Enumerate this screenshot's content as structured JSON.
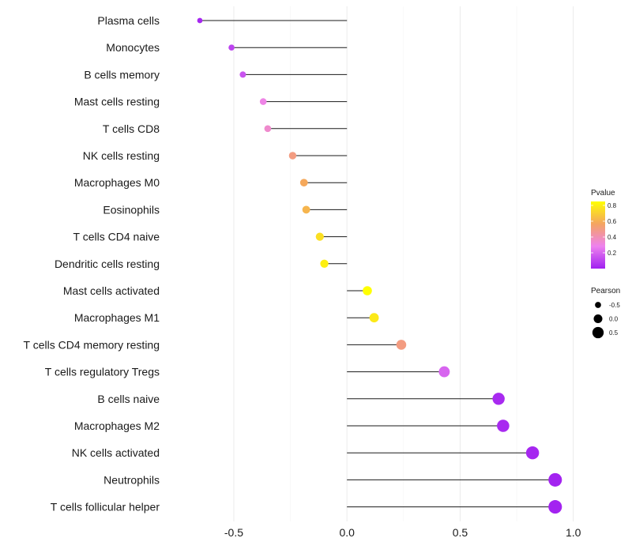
{
  "chart_data": {
    "type": "lollipop",
    "title": "",
    "xlabel": "",
    "ylabel": "",
    "xlim": [
      -0.8,
      1.05
    ],
    "x_ticks": [
      -0.5,
      0.0,
      0.5,
      1.0
    ],
    "x_tick_labels": [
      "-0.5",
      "0.0",
      "0.5",
      "1.0"
    ],
    "grid": "vertical",
    "categories": [
      "Plasma cells",
      "Monocytes",
      "B cells memory",
      "Mast cells resting",
      "T cells CD8",
      "NK cells resting",
      "Macrophages M0",
      "Eosinophils",
      "T cells CD4 naive",
      "Dendritic cells resting",
      "Mast cells activated",
      "Macrophages M1",
      "T cells CD4 memory resting",
      "T cells regulatory  Tregs",
      "B cells naive",
      "Macrophages M2",
      "NK cells activated",
      "Neutrophils",
      "T cells follicular helper"
    ],
    "series": [
      {
        "name": "Pearson",
        "values": [
          -0.65,
          -0.51,
          -0.46,
          -0.37,
          -0.35,
          -0.24,
          -0.19,
          -0.18,
          -0.12,
          -0.1,
          0.09,
          0.12,
          0.24,
          0.43,
          0.67,
          0.69,
          0.82,
          0.92,
          0.92
        ]
      },
      {
        "name": "Pvalue",
        "values": [
          0.02,
          0.1,
          0.15,
          0.3,
          0.35,
          0.5,
          0.58,
          0.62,
          0.75,
          0.8,
          0.85,
          0.78,
          0.5,
          0.2,
          0.03,
          0.03,
          0.02,
          0.01,
          0.01
        ]
      }
    ],
    "legends": [
      {
        "title": "Pvalue",
        "kind": "colorbar",
        "range": [
          0.0,
          0.85
        ],
        "ticks": [
          0.2,
          0.4,
          0.6,
          0.8
        ],
        "tick_labels": [
          "0.2",
          "0.4",
          "0.6",
          "0.8"
        ],
        "colors": [
          "#a020f0",
          "#ee82ee",
          "#f4a460",
          "#ffff00"
        ]
      },
      {
        "title": "Pearson",
        "kind": "size",
        "values": [
          -0.5,
          0.0,
          0.5
        ],
        "labels": [
          "-0.5",
          "0.0",
          "0.5"
        ]
      }
    ],
    "legend_position": "right"
  }
}
